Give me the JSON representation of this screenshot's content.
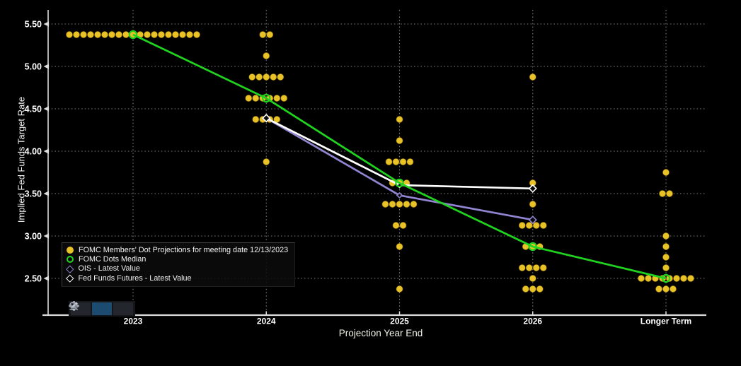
{
  "title": "Implied Fed Funds Target Rate",
  "legend": {
    "items": [
      {
        "marker": "filled-circle",
        "color": "#e8c227",
        "label": "FOMC Members' Dot Projections for meeting date 12/13/2023"
      },
      {
        "marker": "open-circle",
        "color": "#1fd31f",
        "label": "FOMC Dots Median"
      },
      {
        "marker": "open-diamond",
        "color": "#9284d1",
        "label": "OIS - Latest Value"
      },
      {
        "marker": "open-diamond",
        "color": "#ffffff",
        "label": "Fed Funds Futures - Latest Value"
      }
    ]
  },
  "toolbar": {
    "buttons": [
      {
        "name": "pan",
        "icon": "move-icon",
        "active": false
      },
      {
        "name": "draw",
        "icon": "pencil-icon",
        "active": true
      },
      {
        "name": "zoom",
        "icon": "magnifier-icon",
        "active": false
      }
    ]
  },
  "chart_data": {
    "type": "scatter",
    "title": "Implied Fed Funds Target Rate",
    "xlabel": "Projection Year End",
    "ylabel": "Implied Fed Funds Target Rate",
    "categories": [
      "2023",
      "2024",
      "2025",
      "2026",
      "Longer Term"
    ],
    "y_ticks": [
      "5.50",
      "5.00",
      "4.50",
      "4.00",
      "3.50",
      "3.00",
      "2.50"
    ],
    "ylim": [
      2.15,
      5.6
    ],
    "grid": "dotted",
    "colors": {
      "dots": "#e8c227",
      "median": "#1fd31f",
      "ois": "#9284d1",
      "futures": "#ffffff",
      "gridline": "#909090",
      "axis": "#dcdcdc",
      "tick_text": "#ffffff"
    },
    "series": [
      {
        "name": "FOMC Members' Dot Projections for meeting date 12/13/2023",
        "type": "dots",
        "color": "#e8c227",
        "points": {
          "2023": {
            "5.375": 19
          },
          "2024": {
            "5.375": 2,
            "5.125": 1,
            "4.875": 5,
            "4.625": 6,
            "4.375": 4,
            "3.875": 1
          },
          "2025": {
            "4.375": 1,
            "4.125": 1,
            "3.875": 4,
            "3.625": 3,
            "3.375": 5,
            "3.125": 2,
            "2.875": 1,
            "2.375": 1
          },
          "2026": {
            "4.875": 1,
            "3.625": 1,
            "3.375": 1,
            "3.125": 4,
            "2.875": 3,
            "2.625": 4,
            "2.5": 1,
            "2.375": 3
          },
          "Longer Term": {
            "3.75": 1,
            "3.5": 2,
            "3.0": 1,
            "2.875": 1,
            "2.75": 1,
            "2.625": 1,
            "2.5": 8,
            "2.375": 3
          }
        }
      },
      {
        "name": "FOMC Dots Median",
        "type": "line",
        "color": "#1fd31f",
        "marker": "open-circle",
        "x": [
          "2023",
          "2024",
          "2025",
          "2026",
          "Longer Term"
        ],
        "values": [
          5.375,
          4.625,
          3.625,
          2.875,
          2.5
        ]
      },
      {
        "name": "OIS - Latest Value",
        "type": "line",
        "color": "#9284d1",
        "marker": "open-diamond",
        "x": [
          "2024",
          "2025",
          "2026"
        ],
        "values": [
          4.39,
          3.48,
          3.19
        ]
      },
      {
        "name": "Fed Funds Futures - Latest Value",
        "type": "line",
        "color": "#ffffff",
        "marker": "open-diamond",
        "x": [
          "2024",
          "2025",
          "2026"
        ],
        "values": [
          4.39,
          3.6,
          3.56
        ]
      }
    ],
    "legend_position": "lower-left"
  }
}
